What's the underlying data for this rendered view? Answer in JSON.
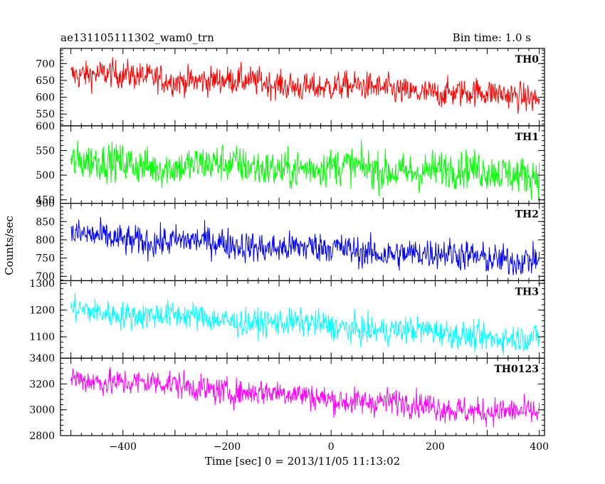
{
  "header": {
    "left": "ae131105111302_wam0_trn",
    "right": "Bin time: 1.0 s"
  },
  "chart_data": {
    "type": "line",
    "title": "ae131105111302_wam0_trn",
    "xlabel": "Time [sec] 0 = 2013/11/05 11:13:02",
    "ylabel": "Counts/sec",
    "xlim": [
      -520,
      410
    ],
    "x_range": [
      -500,
      400
    ],
    "bin_time": 1.0,
    "x_ticks": [
      -400,
      -200,
      0,
      200,
      400
    ],
    "x_tick_labels": [
      "−400",
      "−200",
      "0",
      "200",
      "400"
    ],
    "series": [
      {
        "name": "TH0",
        "color": "#ff0000",
        "ylim": [
          515,
          745
        ],
        "y_ticks": [
          550,
          600,
          650,
          700
        ],
        "y_tick_labels": [
          "550",
          "600",
          "650",
          "700"
        ],
        "y_top_label": "",
        "trend_start": 670,
        "trend_end": 600,
        "noise": 26
      },
      {
        "name": "TH1",
        "color": "#00ff00",
        "ylim": [
          443,
          600
        ],
        "y_ticks": [
          450,
          500,
          550,
          600
        ],
        "y_tick_labels": [
          "450",
          "500",
          "550",
          "600"
        ],
        "y_top_label": "",
        "trend_start": 525,
        "trend_end": 505,
        "noise": 24
      },
      {
        "name": "TH2",
        "color": "#0000ff",
        "ylim": [
          688,
          900
        ],
        "y_ticks": [
          700,
          750,
          800,
          850,
          900
        ],
        "y_tick_labels": [
          "700",
          "750",
          "800",
          "850",
          "900"
        ],
        "y_top_label": "",
        "trend_start": 810,
        "trend_end": 745,
        "noise": 26
      },
      {
        "name": "TH3",
        "color": "#00ffff",
        "ylim": [
          1020,
          1310
        ],
        "y_ticks": [
          1100,
          1200,
          1300
        ],
        "y_tick_labels": [
          "1100",
          "1200",
          "1300"
        ],
        "y_top_label": "",
        "trend_start": 1200,
        "trend_end": 1090,
        "noise": 32
      },
      {
        "name": "TH0123",
        "color": "#ff00ff",
        "ylim": [
          2800,
          3400
        ],
        "y_ticks": [
          2800,
          3000,
          3200,
          3400
        ],
        "y_tick_labels": [
          "2800",
          "3000",
          "3200",
          "3400"
        ],
        "y_top_label": "",
        "trend_start": 3250,
        "trend_end": 2960,
        "noise": 65
      }
    ]
  }
}
